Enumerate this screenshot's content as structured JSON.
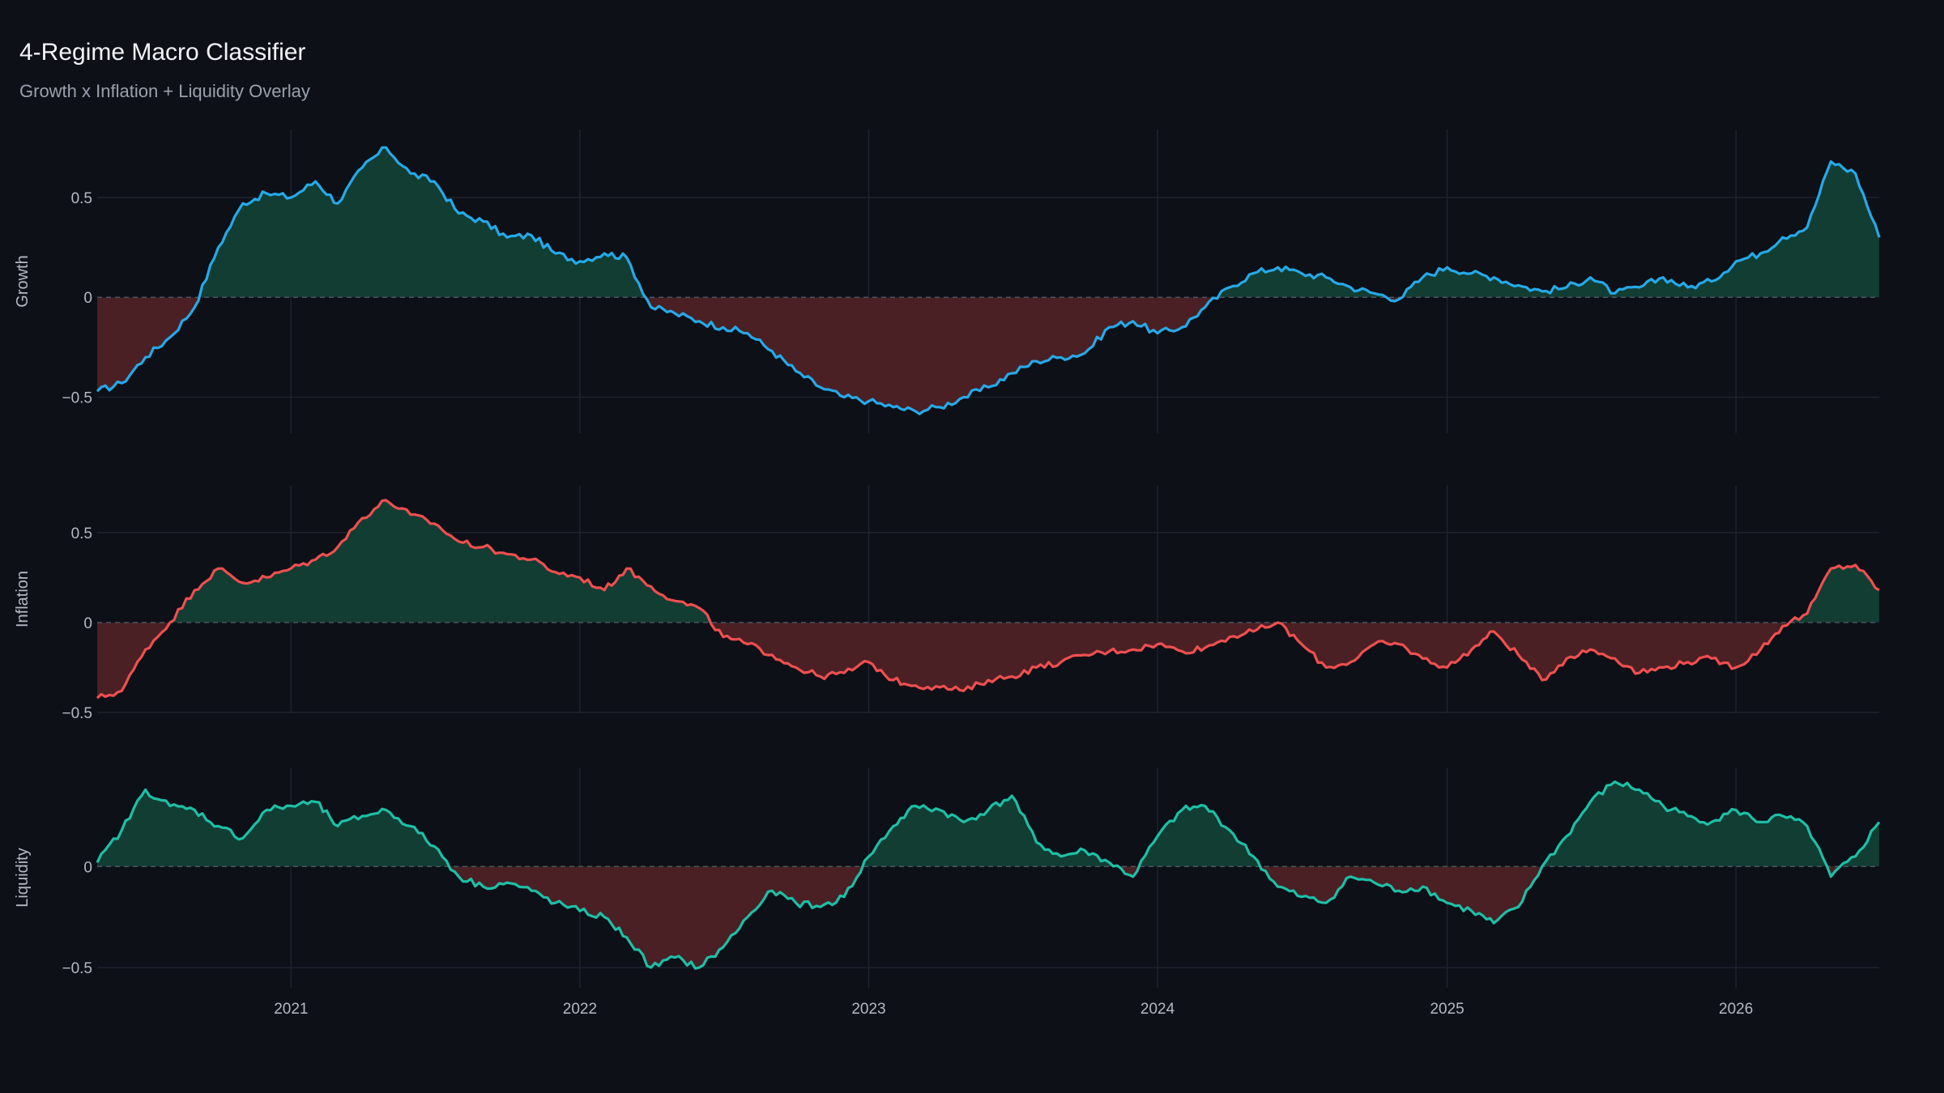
{
  "title": "4-Regime Macro Classifier",
  "subtitle": "Growth x Inflation + Liquidity Overlay",
  "colors": {
    "background": "#0d1017",
    "grid": "#1e232d",
    "zero_line": "#4a5463",
    "tick_text": "#b3b9c3",
    "positive_fill": "#113d33",
    "negative_fill": "#4a2024"
  },
  "chart_data": {
    "type": "area",
    "x_ticks": [
      "2021",
      "2022",
      "2023",
      "2024",
      "2025",
      "2026"
    ],
    "xlim": [
      "2020-05-01",
      "2026-07-01"
    ],
    "grid": true,
    "panels": [
      {
        "ylabel": "Growth",
        "ylim": [
          -0.68,
          0.84
        ],
        "yticks": [
          -0.5,
          0,
          0.5
        ],
        "ytick_labels": [
          "−0.5",
          "0",
          "0.5"
        ],
        "series": {
          "color": "#26a9e8",
          "x": [
            "2020-05-01",
            "2020-06-01",
            "2020-07-01",
            "2020-08-01",
            "2020-09-01",
            "2020-10-01",
            "2020-11-01",
            "2020-12-01",
            "2021-01-01",
            "2021-02-01",
            "2021-03-01",
            "2021-04-01",
            "2021-05-01",
            "2021-06-01",
            "2021-07-01",
            "2021-08-01",
            "2021-09-01",
            "2021-10-01",
            "2021-11-01",
            "2021-12-01",
            "2022-01-01",
            "2022-02-01",
            "2022-03-01",
            "2022-04-01",
            "2022-05-01",
            "2022-06-01",
            "2022-07-01",
            "2022-08-01",
            "2022-09-01",
            "2022-10-01",
            "2022-11-01",
            "2022-12-01",
            "2023-01-01",
            "2023-02-01",
            "2023-03-01",
            "2023-04-01",
            "2023-05-01",
            "2023-06-01",
            "2023-07-01",
            "2023-08-01",
            "2023-09-01",
            "2023-10-01",
            "2023-11-01",
            "2023-12-01",
            "2024-01-01",
            "2024-02-01",
            "2024-03-01",
            "2024-04-01",
            "2024-05-01",
            "2024-06-01",
            "2024-07-01",
            "2024-08-01",
            "2024-09-01",
            "2024-10-01",
            "2024-11-01",
            "2024-12-01",
            "2025-01-01",
            "2025-02-01",
            "2025-03-01",
            "2025-04-01",
            "2025-05-01",
            "2025-06-01",
            "2025-07-01",
            "2025-08-01",
            "2025-09-01",
            "2025-10-01",
            "2025-11-01",
            "2025-12-01",
            "2026-01-01",
            "2026-02-01",
            "2026-03-01",
            "2026-04-01",
            "2026-05-01",
            "2026-06-01",
            "2026-07-01"
          ],
          "values": [
            -0.47,
            -0.43,
            -0.3,
            -0.2,
            -0.05,
            0.25,
            0.47,
            0.52,
            0.5,
            0.58,
            0.47,
            0.65,
            0.75,
            0.62,
            0.58,
            0.42,
            0.38,
            0.3,
            0.31,
            0.22,
            0.18,
            0.22,
            0.2,
            -0.05,
            -0.08,
            -0.12,
            -0.15,
            -0.18,
            -0.27,
            -0.37,
            -0.45,
            -0.5,
            -0.52,
            -0.55,
            -0.57,
            -0.55,
            -0.5,
            -0.45,
            -0.38,
            -0.32,
            -0.3,
            -0.28,
            -0.15,
            -0.12,
            -0.18,
            -0.15,
            -0.05,
            0.05,
            0.12,
            0.15,
            0.12,
            0.1,
            0.05,
            0.02,
            -0.01,
            0.1,
            0.15,
            0.12,
            0.1,
            0.06,
            0.03,
            0.05,
            0.1,
            0.02,
            0.05,
            0.1,
            0.05,
            0.08,
            0.18,
            0.22,
            0.3,
            0.35,
            0.68,
            0.62,
            0.3
          ]
        }
      },
      {
        "ylabel": "Inflation",
        "ylim": [
          -0.5,
          0.76
        ],
        "yticks": [
          -0.5,
          0,
          0.5
        ],
        "ytick_labels": [
          "−0.5",
          "0",
          "0.5"
        ],
        "series": {
          "color": "#ef4f4f",
          "x": [
            "2020-05-01",
            "2020-06-01",
            "2020-07-01",
            "2020-08-01",
            "2020-09-01",
            "2020-10-01",
            "2020-11-01",
            "2020-12-01",
            "2021-01-01",
            "2021-02-01",
            "2021-03-01",
            "2021-04-01",
            "2021-05-01",
            "2021-06-01",
            "2021-07-01",
            "2021-08-01",
            "2021-09-01",
            "2021-10-01",
            "2021-11-01",
            "2021-12-01",
            "2022-01-01",
            "2022-02-01",
            "2022-03-01",
            "2022-04-01",
            "2022-05-01",
            "2022-06-01",
            "2022-07-01",
            "2022-08-01",
            "2022-09-01",
            "2022-10-01",
            "2022-11-01",
            "2022-12-01",
            "2023-01-01",
            "2023-02-01",
            "2023-03-01",
            "2023-04-01",
            "2023-05-01",
            "2023-06-01",
            "2023-07-01",
            "2023-08-01",
            "2023-09-01",
            "2023-10-01",
            "2023-11-01",
            "2023-12-01",
            "2024-01-01",
            "2024-02-01",
            "2024-03-01",
            "2024-04-01",
            "2024-05-01",
            "2024-06-01",
            "2024-07-01",
            "2024-08-01",
            "2024-09-01",
            "2024-10-01",
            "2024-11-01",
            "2024-12-01",
            "2025-01-01",
            "2025-02-01",
            "2025-03-01",
            "2025-04-01",
            "2025-05-01",
            "2025-06-01",
            "2025-07-01",
            "2025-08-01",
            "2025-09-01",
            "2025-10-01",
            "2025-11-01",
            "2025-12-01",
            "2026-01-01",
            "2026-02-01",
            "2026-03-01",
            "2026-04-01",
            "2026-05-01",
            "2026-06-01",
            "2026-07-01"
          ],
          "values": [
            -0.42,
            -0.38,
            -0.15,
            0,
            0.18,
            0.3,
            0.22,
            0.25,
            0.3,
            0.35,
            0.42,
            0.58,
            0.68,
            0.6,
            0.55,
            0.45,
            0.42,
            0.38,
            0.35,
            0.28,
            0.25,
            0.18,
            0.3,
            0.2,
            0.12,
            0.08,
            -0.08,
            -0.12,
            -0.18,
            -0.25,
            -0.3,
            -0.28,
            -0.22,
            -0.32,
            -0.35,
            -0.36,
            -0.38,
            -0.32,
            -0.3,
            -0.25,
            -0.22,
            -0.18,
            -0.16,
            -0.15,
            -0.12,
            -0.16,
            -0.14,
            -0.08,
            -0.05,
            0,
            -0.12,
            -0.25,
            -0.22,
            -0.12,
            -0.12,
            -0.2,
            -0.25,
            -0.15,
            -0.05,
            -0.18,
            -0.32,
            -0.2,
            -0.15,
            -0.2,
            -0.28,
            -0.25,
            -0.22,
            -0.2,
            -0.25,
            -0.15,
            -0.02,
            0.05,
            0.3,
            0.32,
            0.18
          ]
        }
      },
      {
        "ylabel": "Liquidity",
        "ylim": [
          -0.6,
          0.49
        ],
        "yticks": [
          -0.5,
          0
        ],
        "ytick_labels": [
          "−0.5",
          "0"
        ],
        "series": {
          "color": "#1ebfa6",
          "x": [
            "2020-05-01",
            "2020-06-01",
            "2020-07-01",
            "2020-08-01",
            "2020-09-01",
            "2020-10-01",
            "2020-11-01",
            "2020-12-01",
            "2021-01-01",
            "2021-02-01",
            "2021-03-01",
            "2021-04-01",
            "2021-05-01",
            "2021-06-01",
            "2021-07-01",
            "2021-08-01",
            "2021-09-01",
            "2021-10-01",
            "2021-11-01",
            "2021-12-01",
            "2022-01-01",
            "2022-02-01",
            "2022-03-01",
            "2022-04-01",
            "2022-05-01",
            "2022-06-01",
            "2022-07-01",
            "2022-08-01",
            "2022-09-01",
            "2022-10-01",
            "2022-11-01",
            "2022-12-01",
            "2023-01-01",
            "2023-02-01",
            "2023-03-01",
            "2023-04-01",
            "2023-05-01",
            "2023-06-01",
            "2023-07-01",
            "2023-08-01",
            "2023-09-01",
            "2023-10-01",
            "2023-11-01",
            "2023-12-01",
            "2024-01-01",
            "2024-02-01",
            "2024-03-01",
            "2024-04-01",
            "2024-05-01",
            "2024-06-01",
            "2024-07-01",
            "2024-08-01",
            "2024-09-01",
            "2024-10-01",
            "2024-11-01",
            "2024-12-01",
            "2025-01-01",
            "2025-02-01",
            "2025-03-01",
            "2025-04-01",
            "2025-05-01",
            "2025-06-01",
            "2025-07-01",
            "2025-08-01",
            "2025-09-01",
            "2025-10-01",
            "2025-11-01",
            "2025-12-01",
            "2026-01-01",
            "2026-02-01",
            "2026-03-01",
            "2026-04-01",
            "2026-05-01",
            "2026-06-01",
            "2026-07-01"
          ],
          "values": [
            0.02,
            0.18,
            0.38,
            0.3,
            0.28,
            0.2,
            0.14,
            0.28,
            0.3,
            0.32,
            0.2,
            0.25,
            0.28,
            0.2,
            0.1,
            -0.05,
            -0.1,
            -0.08,
            -0.12,
            -0.18,
            -0.22,
            -0.25,
            -0.35,
            -0.5,
            -0.45,
            -0.5,
            -0.4,
            -0.25,
            -0.12,
            -0.18,
            -0.2,
            -0.15,
            0.05,
            0.2,
            0.3,
            0.28,
            0.22,
            0.28,
            0.35,
            0.12,
            0.05,
            0.08,
            0.02,
            -0.05,
            0.15,
            0.28,
            0.3,
            0.18,
            0.05,
            -0.1,
            -0.15,
            -0.18,
            -0.05,
            -0.08,
            -0.12,
            -0.1,
            -0.18,
            -0.22,
            -0.28,
            -0.2,
            0,
            0.15,
            0.32,
            0.42,
            0.38,
            0.3,
            0.25,
            0.22,
            0.28,
            0.22,
            0.25,
            0.2,
            -0.05,
            0.05,
            0.22
          ]
        }
      }
    ]
  }
}
